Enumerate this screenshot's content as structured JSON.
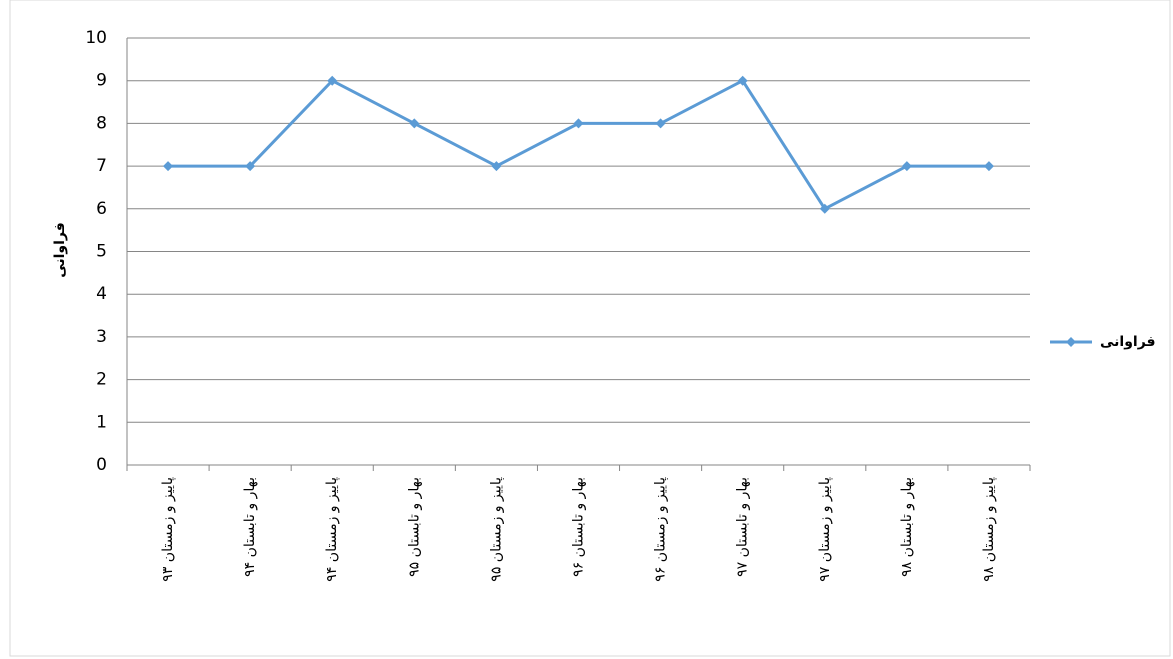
{
  "chart_data": {
    "type": "line",
    "y_axis_label": "فراوانی",
    "categories": [
      "پاییز و زمستان ۹۳",
      "بهار و تابستان ۹۴",
      "پاییز و زمستان ۹۴",
      "بهار و تابستان ۹۵",
      "پاییز و زمستان ۹۵",
      "بهار و تابستان ۹۶",
      "پاییز و زمستان ۹۶",
      "بهار و تابستان ۹۷",
      "پاییز و زمستان ۹۷",
      "بهار و تابستان ۹۸",
      "پاییز و زمستان ۹۸"
    ],
    "series": [
      {
        "name": "فراوانی",
        "color": "#5b9bd5",
        "values": [
          7,
          7,
          9,
          8,
          7,
          8,
          8,
          9,
          6,
          7,
          7
        ]
      }
    ],
    "ylim": [
      0,
      10
    ],
    "yticks": [
      0,
      1,
      2,
      3,
      4,
      5,
      6,
      7,
      8,
      9,
      10
    ],
    "grid": true,
    "legend": "right"
  }
}
